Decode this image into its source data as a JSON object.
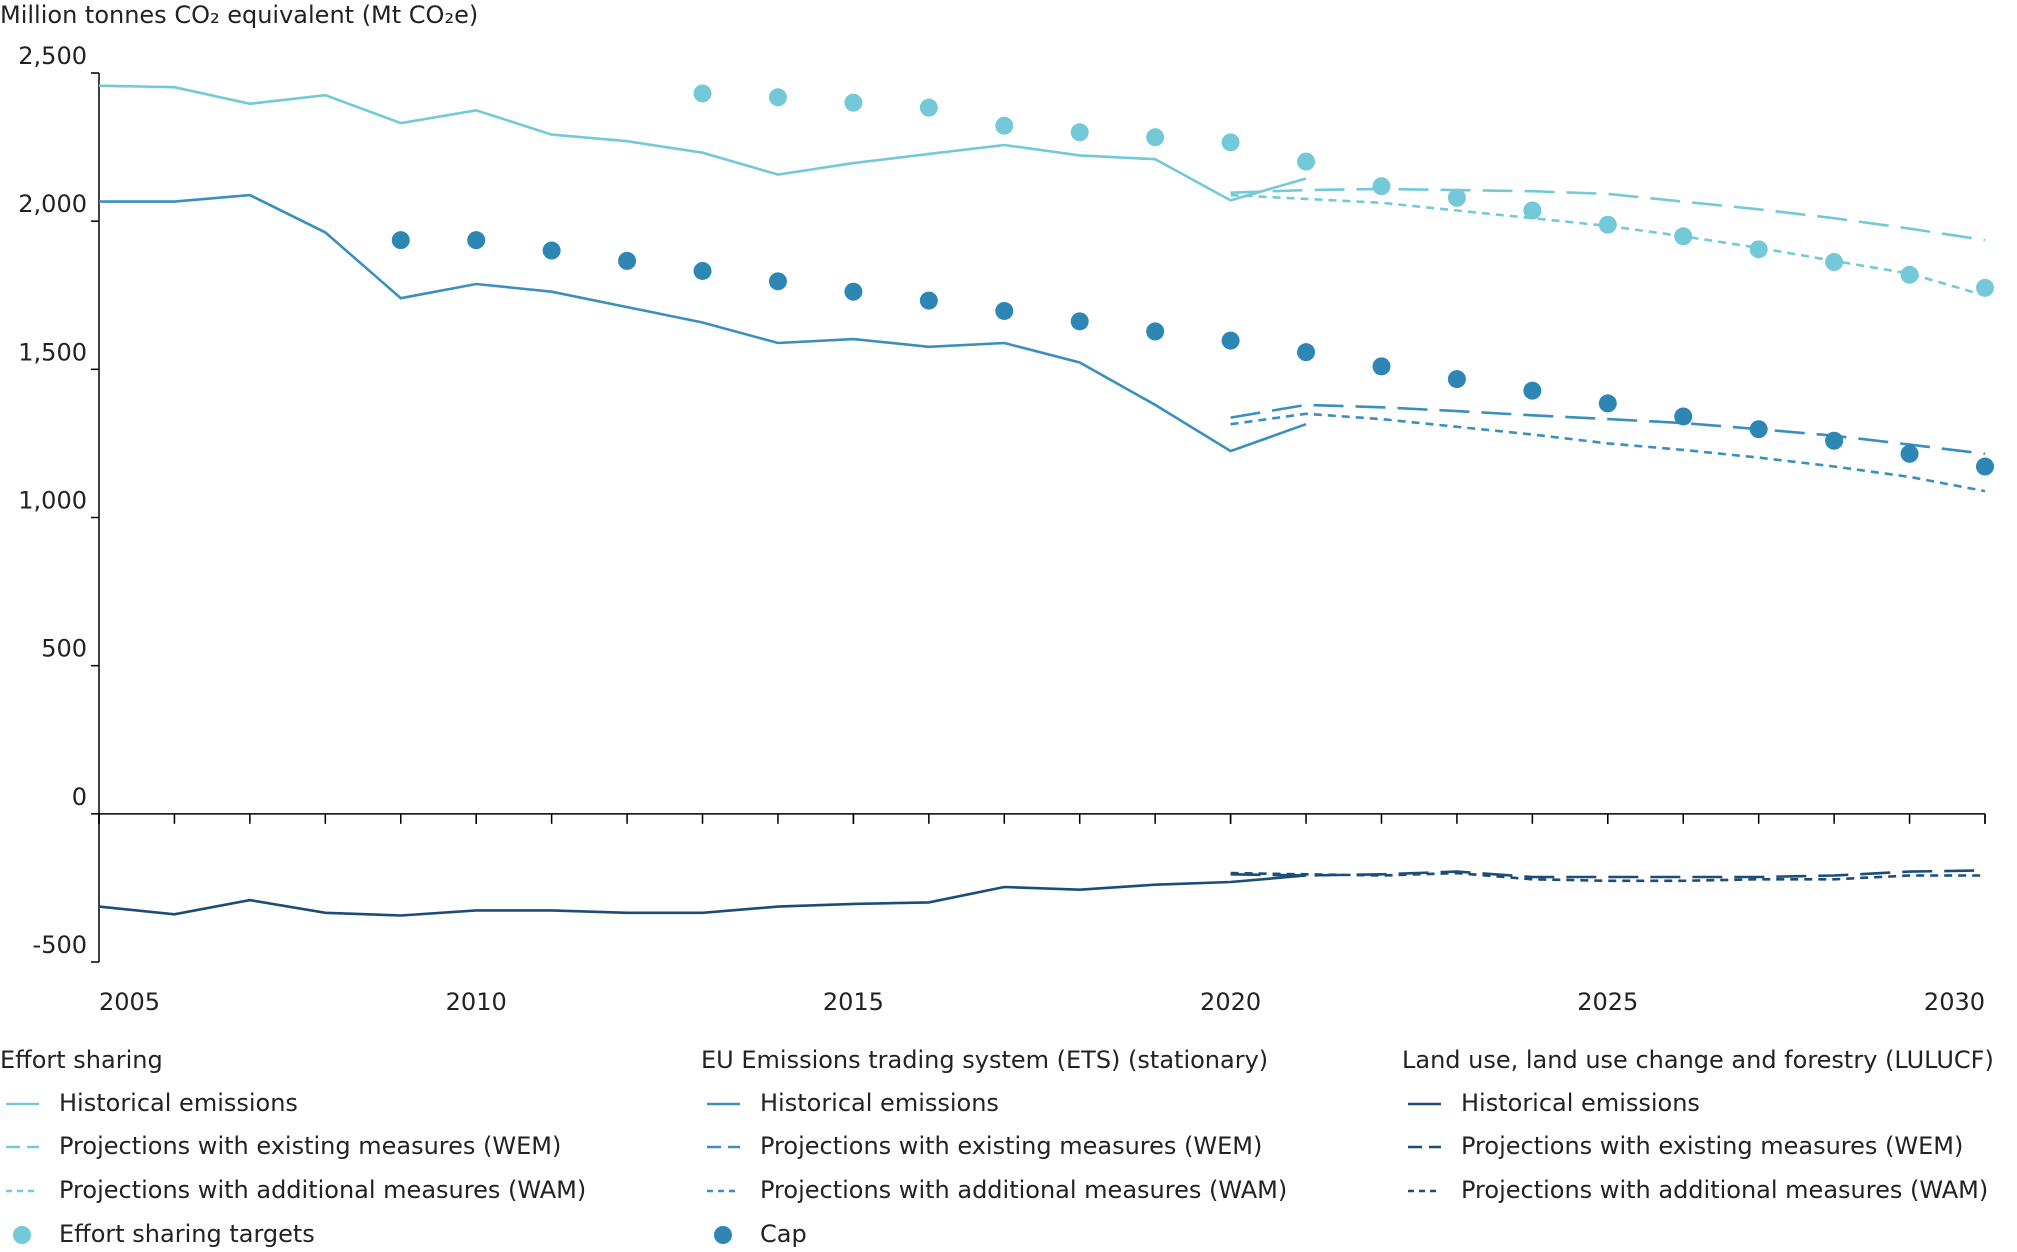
{
  "chart_data": {
    "type": "line",
    "y_label": "Million tonnes CO₂ equivalent (Mt CO₂e)",
    "x": [
      2005,
      2006,
      2007,
      2008,
      2009,
      2010,
      2011,
      2012,
      2013,
      2014,
      2015,
      2016,
      2017,
      2018,
      2019,
      2020,
      2021,
      2022,
      2023,
      2024,
      2025,
      2026,
      2027,
      2028,
      2029,
      2030
    ],
    "xlim": [
      2005,
      2030
    ],
    "xticks": [
      2005,
      2010,
      2015,
      2020,
      2025,
      2030
    ],
    "ylim": [
      -500,
      2500
    ],
    "yticks": [
      -500,
      0,
      500,
      {
        "value": 1000,
        "label": "1,000"
      },
      {
        "value": 1500,
        "label": "1,500"
      },
      {
        "value": 2000,
        "label": "2,000"
      },
      {
        "value": 2500,
        "label": "2,500"
      }
    ],
    "groups": [
      {
        "title": "Effort sharing",
        "series": [
          {
            "name": "Historical emissions",
            "style": "solid",
            "color": "#74c9d8",
            "values": [
              2457,
              2452,
              2396,
              2425,
              2331,
              2374,
              2292,
              2270,
              2231,
              2157,
              2196,
              2227,
              2257,
              2222,
              2209,
              2070,
              2144,
              null,
              null,
              null,
              null,
              null,
              null,
              null,
              null,
              null
            ]
          },
          {
            "name": "Projections with existing measures (WEM)",
            "style": "dashed",
            "color": "#74c9d8",
            "values": [
              null,
              null,
              null,
              null,
              null,
              null,
              null,
              null,
              null,
              null,
              null,
              null,
              null,
              null,
              null,
              2096,
              2105,
              2109,
              2105,
              2101,
              2092,
              2066,
              2040,
              2010,
              1975,
              1936
            ]
          },
          {
            "name": "Projections with additional measures (WAM)",
            "style": "dotted",
            "color": "#74c9d8",
            "values": [
              null,
              null,
              null,
              null,
              null,
              null,
              null,
              null,
              null,
              null,
              null,
              null,
              null,
              null,
              null,
              2088,
              2075,
              2062,
              2036,
              2010,
              1984,
              1949,
              1910,
              1866,
              1823,
              1749
            ]
          },
          {
            "name": "Effort sharing targets",
            "style": "markers",
            "color": "#74c9d8",
            "values": [
              null,
              null,
              null,
              null,
              null,
              null,
              null,
              null,
              2431,
              2418,
              2400,
              2383,
              2322,
              2300,
              2283,
              2266,
              2201,
              2118,
              2079,
              2036,
              1988,
              1949,
              1905,
              1862,
              1819,
              1775
            ]
          }
        ]
      },
      {
        "title": "EU Emissions trading system (ETS) (stationary)",
        "series": [
          {
            "name": "Historical emissions",
            "style": "solid",
            "color": "#3a8fbd",
            "values": [
              2066,
              2066,
              2088,
              1962,
              1740,
              1788,
              1762,
              1710,
              1658,
              1589,
              1602,
              1576,
              1589,
              1523,
              1380,
              1224,
              1315,
              null,
              null,
              null,
              null,
              null,
              null,
              null,
              null,
              null
            ]
          },
          {
            "name": "Projections with existing measures (WEM)",
            "style": "dashed",
            "color": "#3a8fbd",
            "values": [
              null,
              null,
              null,
              null,
              null,
              null,
              null,
              null,
              null,
              null,
              null,
              null,
              null,
              null,
              null,
              1337,
              1380,
              1372,
              1359,
              1345,
              1332,
              1319,
              1298,
              1276,
              1246,
              1215
            ]
          },
          {
            "name": "Projections with additional measures (WAM)",
            "style": "dotted",
            "color": "#3a8fbd",
            "values": [
              null,
              null,
              null,
              null,
              null,
              null,
              null,
              null,
              null,
              null,
              null,
              null,
              null,
              null,
              null,
              1315,
              1350,
              1332,
              1306,
              1280,
              1250,
              1228,
              1202,
              1172,
              1137,
              1089
            ]
          },
          {
            "name": "Cap",
            "style": "markers",
            "color": "#2e86b5",
            "values": [
              null,
              null,
              null,
              null,
              1936,
              1936,
              1901,
              1866,
              1832,
              1797,
              1762,
              1732,
              1697,
              1662,
              1628,
              1597,
              1558,
              1510,
              1467,
              1428,
              1385,
              1341,
              1298,
              1259,
              1215,
              1172
            ]
          }
        ]
      },
      {
        "title": "Land use, land use change and forestry (LULUCF)",
        "series": [
          {
            "name": "Historical emissions",
            "style": "solid",
            "color": "#1c4d78",
            "values": [
              -313,
              -339,
              -291,
              -334,
              -343,
              -326,
              -326,
              -334,
              -334,
              -313,
              -304,
              -299,
              -247,
              -256,
              -239,
              -230,
              -208,
              null,
              null,
              null,
              null,
              null,
              null,
              null,
              null,
              null
            ]
          },
          {
            "name": "Projections with existing measures (WEM)",
            "style": "dashed",
            "color": "#1c4d78",
            "values": [
              null,
              null,
              null,
              null,
              null,
              null,
              null,
              null,
              null,
              null,
              null,
              null,
              null,
              null,
              null,
              -204,
              -208,
              -204,
              -195,
              -213,
              -213,
              -213,
              -213,
              -208,
              -195,
              -191
            ]
          },
          {
            "name": "Projections with additional measures (WAM)",
            "style": "dotted",
            "color": "#1c4d78",
            "values": [
              null,
              null,
              null,
              null,
              null,
              null,
              null,
              null,
              null,
              null,
              null,
              null,
              null,
              null,
              null,
              -200,
              -204,
              -208,
              -200,
              -221,
              -226,
              -226,
              -221,
              -221,
              -208,
              -208
            ]
          }
        ]
      }
    ]
  }
}
